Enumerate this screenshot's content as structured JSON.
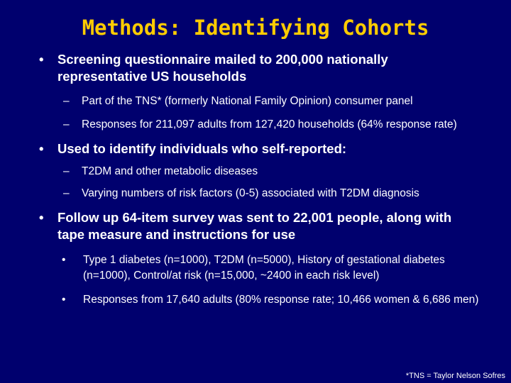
{
  "slide": {
    "title": "Methods: Identifying Cohorts",
    "bullets": [
      {
        "text": "Screening questionnaire mailed to 200,000 nationally representative US households",
        "subs": [
          "Part of the TNS* (formerly National Family Opinion) consumer panel",
          "Responses for 211,097 adults from 127,420 households (64% response rate)"
        ]
      },
      {
        "text": "Used to identify individuals who self-reported:",
        "subs": [
          "T2DM and other metabolic diseases",
          "Varying numbers of risk factors (0-5) associated with T2DM diagnosis"
        ]
      },
      {
        "text": "Follow up 64-item survey was sent to 22,001 people, along with tape measure and instructions for use",
        "subs": [
          "Type 1 diabetes (n=1000), T2DM (n=5000), History of gestational diabetes (n=1000), Control/at risk (n=15,000, ~2400 in each risk level)",
          "Responses from 17,640 adults (80% response rate; 10,466 women & 6,686 men)"
        ]
      }
    ],
    "bullet_glyph": "•",
    "dash_glyph": "–",
    "footnote": "*TNS = Taylor Nelson Sofres"
  }
}
